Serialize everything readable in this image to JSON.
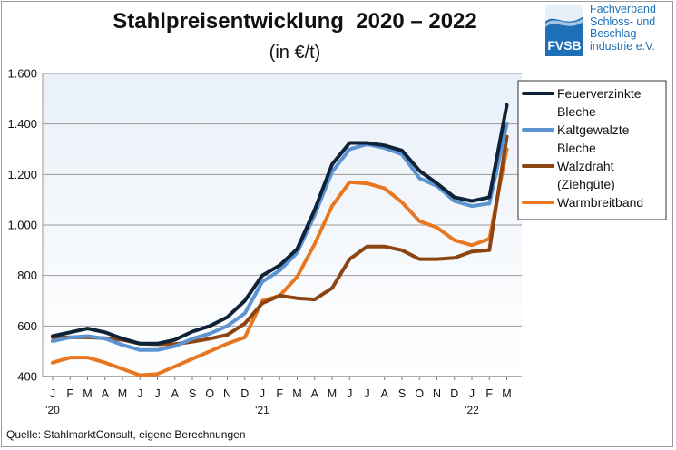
{
  "header": {
    "title": "Stahlpreisentwicklung  2020 – 2022",
    "subtitle": "(in €/t)"
  },
  "logo": {
    "abbr": "FVSB",
    "lines": [
      "Fachverband",
      "Schloss- und",
      "Beschlag-",
      "industrie e.V."
    ],
    "color": "#1d6fb8"
  },
  "footer": {
    "source": "Quelle: StahlmarktConsult, eigene Berechnungen"
  },
  "chart_data": {
    "type": "line",
    "title": "Stahlpreisentwicklung  2020 – 2022",
    "subtitle": "(in €/t)",
    "ylim": [
      400,
      1600
    ],
    "yticks": [
      "400",
      "600",
      "800",
      "1.000",
      "1.200",
      "1.400",
      "1.600"
    ],
    "ytick_values": [
      400,
      600,
      800,
      1000,
      1200,
      1400,
      1600
    ],
    "categories": [
      "J",
      "F",
      "M",
      "A",
      "M",
      "J",
      "J",
      "A",
      "S",
      "O",
      "N",
      "D",
      "J",
      "F",
      "M",
      "A",
      "M",
      "J",
      "J",
      "A",
      "S",
      "O",
      "N",
      "D",
      "J",
      "F",
      "M"
    ],
    "year_labels": [
      {
        "index": 0,
        "label": "'20"
      },
      {
        "index": 12,
        "label": "'21"
      },
      {
        "index": 24,
        "label": "'22"
      }
    ],
    "legend_position": "top-right",
    "series": [
      {
        "name": "Feuerverzinkte Bleche",
        "legend_lines": [
          "Feuerverzinkte",
          "Bleche"
        ],
        "color": "#0f2338",
        "values": [
          560,
          575,
          590,
          575,
          550,
          530,
          530,
          545,
          578,
          600,
          635,
          700,
          800,
          840,
          905,
          1060,
          1240,
          1325,
          1325,
          1315,
          1295,
          1215,
          1165,
          1110,
          1095,
          1110,
          1475
        ]
      },
      {
        "name": "Kaltgewalzte Bleche",
        "legend_lines": [
          "Kaltgewalzte",
          "Bleche"
        ],
        "color": "#5b93d3",
        "values": [
          540,
          555,
          560,
          550,
          525,
          505,
          505,
          520,
          550,
          570,
          600,
          650,
          775,
          820,
          890,
          1040,
          1210,
          1300,
          1320,
          1305,
          1280,
          1185,
          1155,
          1095,
          1075,
          1085,
          1400
        ]
      },
      {
        "name": "Walzdraht (Ziehgüte)",
        "legend_lines": [
          "Walzdraht",
          "(Ziehgüte)"
        ],
        "color": "#8b4513",
        "values": [
          555,
          555,
          555,
          552,
          545,
          530,
          528,
          528,
          538,
          550,
          565,
          610,
          690,
          720,
          710,
          705,
          750,
          865,
          915,
          915,
          900,
          865,
          865,
          870,
          895,
          900,
          1350
        ]
      },
      {
        "name": "Warmbreitband",
        "legend_lines": [
          "Warmbreitband"
        ],
        "color": "#e87722",
        "values": [
          455,
          475,
          475,
          455,
          430,
          405,
          410,
          440,
          470,
          500,
          530,
          555,
          700,
          720,
          795,
          925,
          1075,
          1170,
          1165,
          1145,
          1090,
          1015,
          990,
          940,
          920,
          945,
          1300
        ]
      }
    ]
  }
}
